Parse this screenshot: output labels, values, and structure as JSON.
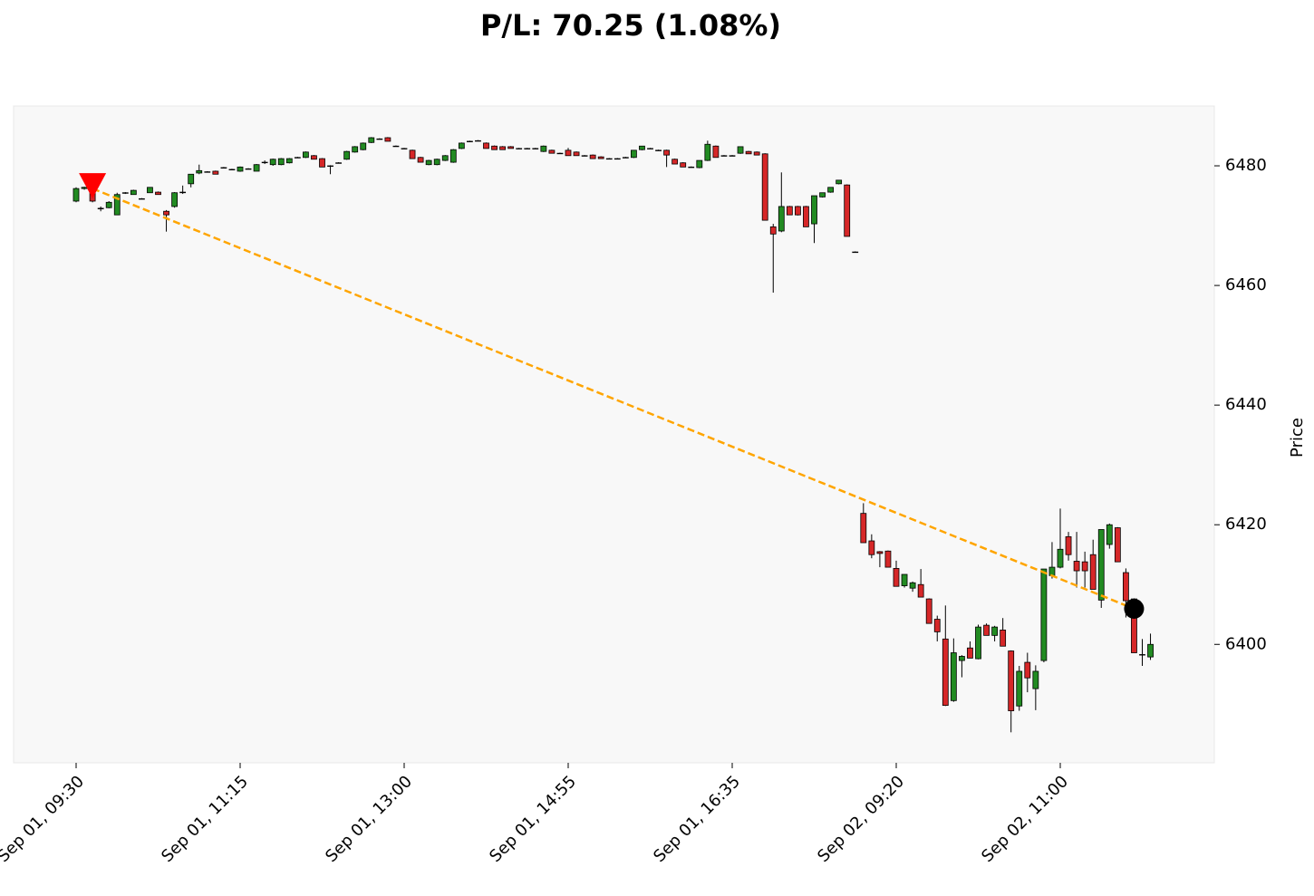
{
  "chart_data": {
    "type": "candlestick",
    "title": "P/L: 70.25 (1.08%)",
    "ylabel": "Price",
    "categories": [
      "Sep 01, 09:30",
      null,
      null,
      null,
      null,
      null,
      null,
      null,
      null,
      null,
      null,
      null,
      null,
      null,
      null,
      null,
      null,
      null,
      null,
      null,
      "Sep 01, 11:15",
      null,
      null,
      null,
      null,
      null,
      null,
      null,
      null,
      null,
      null,
      null,
      null,
      null,
      null,
      null,
      null,
      null,
      null,
      null,
      "Sep 01, 13:00",
      null,
      null,
      null,
      null,
      null,
      null,
      null,
      null,
      null,
      null,
      null,
      null,
      null,
      null,
      null,
      null,
      null,
      null,
      null,
      "Sep 01, 14:55",
      null,
      null,
      null,
      null,
      null,
      null,
      null,
      null,
      null,
      null,
      null,
      null,
      null,
      null,
      null,
      null,
      null,
      null,
      null,
      "Sep 01, 16:35",
      null,
      null,
      null,
      null,
      null,
      null,
      null,
      null,
      null,
      null,
      null,
      null,
      null,
      null,
      null,
      null,
      null,
      null,
      null,
      "Sep 02, 09:20",
      null,
      null,
      null,
      null,
      null,
      null,
      null,
      null,
      null,
      null,
      null,
      null,
      null,
      null,
      null,
      null,
      null,
      null,
      null,
      "Sep 02, 11:00",
      null,
      null,
      null,
      null,
      null,
      null,
      null,
      null,
      null,
      null,
      null
    ],
    "open": [
      6474.1,
      6476.2,
      6475.5,
      6472.9,
      6473.0,
      6471.8,
      6475.5,
      6475.2,
      6474.5,
      6475.5,
      6475.6,
      6472.4,
      6473.2,
      6475.5,
      6477.0,
      6478.8,
      6479.0,
      6479.1,
      6479.7,
      6479.4,
      6479.1,
      6479.5,
      6479.1,
      6480.6,
      6480.2,
      6480.2,
      6480.5,
      6481.4,
      6481.4,
      6481.7,
      6481.2,
      6480.0,
      6480.5,
      6481.1,
      6482.3,
      6482.7,
      6483.9,
      6484.5,
      6484.7,
      6483.3,
      6482.9,
      6482.6,
      6481.4,
      6480.2,
      6480.2,
      6480.9,
      6480.6,
      6482.9,
      6484.1,
      6484.2,
      6483.8,
      6483.3,
      6483.2,
      6483.2,
      6482.9,
      6482.9,
      6482.9,
      6482.4,
      6482.6,
      6482.1,
      6482.6,
      6482.3,
      6481.7,
      6481.8,
      6481.5,
      6481.2,
      6481.2,
      6481.4,
      6481.4,
      6482.7,
      6482.9,
      6482.6,
      6482.6,
      6481.1,
      6480.5,
      6479.8,
      6479.7,
      6480.9,
      6483.3,
      6481.7,
      6481.7,
      6482.1,
      6482.4,
      6482.3,
      6482.0,
      6469.8,
      6469.1,
      6473.2,
      6473.2,
      6473.2,
      6470.3,
      6474.8,
      6475.6,
      6477.0,
      6476.8,
      6465.6,
      6421.9,
      6417.3,
      6415.5,
      6415.6,
      6412.7,
      6409.8,
      6409.4,
      6410.0,
      6407.6,
      6404.2,
      6400.9,
      6390.6,
      6397.3,
      6399.4,
      6397.6,
      6403.2,
      6401.5,
      6402.4,
      6398.9,
      6389.7,
      6397.0,
      6392.6,
      6397.3,
      6411.5,
      6412.9,
      6418.0,
      6413.9,
      6413.8,
      6415.0,
      6407.4,
      6416.7,
      6419.5,
      6412.0,
      6407.6,
      6398.3,
      6397.9
    ],
    "high": [
      6476.4,
      6476.5,
      6476.2,
      6473.2,
      6474.1,
      6475.5,
      6475.6,
      6476.0,
      6474.6,
      6476.4,
      6475.7,
      6472.6,
      6475.6,
      6476.7,
      6478.6,
      6480.2,
      6479.1,
      6479.2,
      6479.8,
      6479.5,
      6479.9,
      6479.6,
      6480.3,
      6480.9,
      6481.2,
      6481.3,
      6481.3,
      6481.5,
      6482.4,
      6481.8,
      6481.3,
      6480.1,
      6480.6,
      6482.5,
      6483.3,
      6483.9,
      6484.8,
      6484.6,
      6484.8,
      6483.4,
      6483.0,
      6482.7,
      6481.5,
      6481.0,
      6481.2,
      6481.8,
      6482.8,
      6483.9,
      6484.2,
      6484.3,
      6483.9,
      6483.4,
      6483.3,
      6483.3,
      6483.0,
      6483.0,
      6483.0,
      6483.4,
      6482.7,
      6482.2,
      6483.0,
      6482.4,
      6481.8,
      6481.9,
      6481.6,
      6481.3,
      6481.3,
      6481.5,
      6482.6,
      6483.3,
      6483.0,
      6482.7,
      6482.7,
      6481.2,
      6480.6,
      6479.9,
      6480.9,
      6484.2,
      6483.4,
      6481.8,
      6481.8,
      6483.2,
      6482.5,
      6482.4,
      6482.1,
      6470.3,
      6478.9,
      6473.3,
      6473.3,
      6473.3,
      6475.0,
      6475.5,
      6476.4,
      6477.6,
      6476.9,
      6465.7,
      6423.6,
      6418.4,
      6415.6,
      6415.7,
      6414.0,
      6411.7,
      6410.5,
      6412.6,
      6407.7,
      6404.8,
      6406.5,
      6401.0,
      6398.2,
      6400.5,
      6403.3,
      6403.5,
      6403.1,
      6404.4,
      6399.0,
      6396.4,
      6398.6,
      6396.5,
      6412.6,
      6417.1,
      6422.7,
      6418.8,
      6418.8,
      6415.5,
      6417.5,
      6419.2,
      6420.2,
      6419.6,
      6412.7,
      6407.7,
      6400.9,
      6401.8
    ],
    "low": [
      6473.9,
      6476.0,
      6473.9,
      6472.4,
      6472.9,
      6471.8,
      6475.3,
      6475.2,
      6474.4,
      6475.5,
      6475.2,
      6469.0,
      6473.0,
      6475.3,
      6476.4,
      6478.6,
      6478.9,
      6478.6,
      6479.6,
      6479.3,
      6479.0,
      6479.4,
      6479.1,
      6480.3,
      6480.0,
      6480.1,
      6480.4,
      6481.3,
      6481.3,
      6481.1,
      6479.8,
      6478.6,
      6480.4,
      6481.0,
      6482.2,
      6482.6,
      6483.8,
      6484.4,
      6484.1,
      6483.2,
      6482.8,
      6481.2,
      6480.6,
      6480.1,
      6480.1,
      6480.8,
      6480.5,
      6482.8,
      6484.0,
      6484.1,
      6482.9,
      6482.7,
      6482.7,
      6482.9,
      6482.8,
      6482.8,
      6482.8,
      6482.3,
      6482.1,
      6482.0,
      6481.7,
      6481.7,
      6481.6,
      6481.2,
      6481.2,
      6481.1,
      6481.1,
      6481.3,
      6481.3,
      6482.6,
      6482.8,
      6482.5,
      6479.8,
      6480.3,
      6479.8,
      6479.7,
      6479.6,
      6480.8,
      6481.4,
      6481.6,
      6481.6,
      6482.0,
      6482.0,
      6481.8,
      6470.9,
      6458.8,
      6468.9,
      6471.8,
      6471.7,
      6469.8,
      6467.1,
      6474.7,
      6475.5,
      6476.9,
      6468.2,
      6465.5,
      6417.0,
      6414.4,
      6412.9,
      6412.9,
      6409.7,
      6409.5,
      6408.8,
      6407.9,
      6403.5,
      6400.5,
      6389.7,
      6390.4,
      6394.5,
      6397.7,
      6397.5,
      6401.5,
      6400.5,
      6399.7,
      6385.3,
      6388.9,
      6392.0,
      6389.0,
      6397.0,
      6411.0,
      6412.7,
      6414.0,
      6409.5,
      6409.5,
      6409.2,
      6406.1,
      6416.0,
      6413.8,
      6404.5,
      6398.6,
      6396.4,
      6397.4
    ],
    "close": [
      6476.2,
      6476.4,
      6474.1,
      6472.8,
      6473.9,
      6475.2,
      6475.5,
      6475.9,
      6474.5,
      6476.4,
      6475.2,
      6471.8,
      6475.5,
      6475.6,
      6478.6,
      6479.2,
      6479.0,
      6478.6,
      6479.7,
      6479.4,
      6479.8,
      6479.5,
      6480.2,
      6480.6,
      6481.1,
      6481.2,
      6481.2,
      6481.4,
      6482.3,
      6481.1,
      6479.8,
      6480.0,
      6480.5,
      6482.4,
      6483.2,
      6483.8,
      6484.7,
      6484.5,
      6484.1,
      6483.3,
      6482.9,
      6481.2,
      6480.6,
      6480.9,
      6481.1,
      6481.7,
      6482.7,
      6483.8,
      6484.1,
      6484.2,
      6482.9,
      6482.7,
      6482.7,
      6482.9,
      6482.9,
      6482.9,
      6482.9,
      6483.3,
      6482.1,
      6482.1,
      6481.7,
      6481.7,
      6481.7,
      6481.2,
      6481.2,
      6481.2,
      6481.2,
      6481.4,
      6482.6,
      6483.3,
      6482.9,
      6482.6,
      6481.8,
      6480.3,
      6479.8,
      6479.8,
      6480.9,
      6483.6,
      6481.4,
      6481.7,
      6481.7,
      6483.2,
      6482.0,
      6481.8,
      6470.9,
      6468.6,
      6473.2,
      6471.8,
      6471.8,
      6469.8,
      6475.0,
      6475.5,
      6476.4,
      6477.6,
      6468.2,
      6465.6,
      6417.0,
      6415.0,
      6415.2,
      6412.9,
      6409.7,
      6411.7,
      6410.3,
      6407.9,
      6403.5,
      6402.1,
      6389.8,
      6398.6,
      6398.0,
      6397.7,
      6402.9,
      6401.5,
      6402.9,
      6399.7,
      6388.9,
      6395.5,
      6394.4,
      6395.5,
      6412.6,
      6412.9,
      6415.9,
      6415.0,
      6412.3,
      6412.3,
      6409.2,
      6419.2,
      6420.0,
      6413.8,
      6407.3,
      6398.6,
      6398.3,
      6400.0
    ],
    "entry_markers": [
      null,
      null,
      6476.2,
      null,
      null,
      null,
      null,
      null,
      null,
      null,
      null,
      null,
      null,
      null,
      null,
      null,
      null,
      null,
      null,
      null,
      null,
      null,
      null,
      null,
      null,
      null,
      null,
      null,
      null,
      null,
      null,
      null,
      null,
      null,
      null,
      null,
      null,
      null,
      null,
      null,
      null,
      null,
      null,
      null,
      null,
      null,
      null,
      null,
      null,
      null,
      null,
      null,
      null,
      null,
      null,
      null,
      null,
      null,
      null,
      null,
      null,
      null,
      null,
      null,
      null,
      null,
      null,
      null,
      null,
      null,
      null,
      null,
      null,
      null,
      null,
      null,
      null,
      null,
      null,
      null,
      null,
      null,
      null,
      null,
      null,
      null,
      null,
      null,
      null,
      null,
      null,
      null,
      null,
      null,
      null,
      null,
      null,
      null,
      null,
      null,
      null,
      null,
      null,
      null,
      null,
      null,
      null,
      null,
      null,
      null,
      null,
      null,
      null,
      null,
      null,
      null,
      null,
      null,
      null,
      null,
      null,
      null,
      null,
      null,
      null,
      null,
      null,
      null,
      null,
      null,
      null,
      null
    ],
    "exit_markers": [
      null,
      null,
      null,
      null,
      null,
      null,
      null,
      null,
      null,
      null,
      null,
      null,
      null,
      null,
      null,
      null,
      null,
      null,
      null,
      null,
      null,
      null,
      null,
      null,
      null,
      null,
      null,
      null,
      null,
      null,
      null,
      null,
      null,
      null,
      null,
      null,
      null,
      null,
      null,
      null,
      null,
      null,
      null,
      null,
      null,
      null,
      null,
      null,
      null,
      null,
      null,
      null,
      null,
      null,
      null,
      null,
      null,
      null,
      null,
      null,
      null,
      null,
      null,
      null,
      null,
      null,
      null,
      null,
      null,
      null,
      null,
      null,
      null,
      null,
      null,
      null,
      null,
      null,
      null,
      null,
      null,
      null,
      null,
      null,
      null,
      null,
      null,
      null,
      null,
      null,
      null,
      null,
      null,
      null,
      null,
      null,
      null,
      null,
      null,
      null,
      null,
      null,
      null,
      null,
      null,
      null,
      null,
      null,
      null,
      null,
      null,
      null,
      null,
      null,
      null,
      null,
      null,
      null,
      null,
      null,
      null,
      null,
      null,
      null,
      null,
      null,
      null,
      null,
      null,
      6405.95,
      null,
      null
    ],
    "up_color": "#228b22",
    "down_color": "#d62728",
    "entry_color": "#ff0000",
    "exit_color": "#000000",
    "trade_line_color": "#ffa500",
    "ylim": [
      6380.2,
      6490
    ],
    "yticks": [
      6400,
      6420,
      6440,
      6460,
      6480
    ],
    "y_axis_side": "right"
  }
}
